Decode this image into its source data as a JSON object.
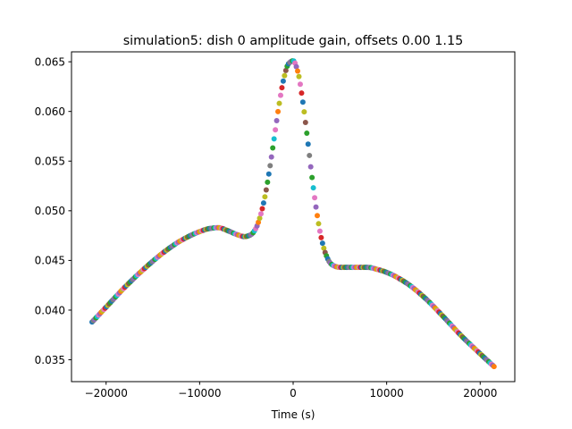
{
  "chart_data": {
    "type": "scatter",
    "title": "simulation5: dish 0 amplitude gain, offsets 0.00 1.15",
    "xlabel": "Time (s)",
    "ylabel": "",
    "xlim": [
      -23700,
      23700
    ],
    "ylim": [
      0.0328,
      0.066
    ],
    "xticks": [
      -20000,
      -10000,
      0,
      10000,
      20000
    ],
    "xtick_labels": [
      "−20000",
      "−10000",
      "0",
      "10000",
      "20000"
    ],
    "yticks": [
      0.035,
      0.04,
      0.045,
      0.05,
      0.055,
      0.06,
      0.065
    ],
    "ytick_labels": [
      "0.035",
      "0.040",
      "0.045",
      "0.050",
      "0.055",
      "0.060",
      "0.065"
    ],
    "grid": false,
    "legend": "none",
    "marker": "circle",
    "curve_x": [
      -21500,
      -20000,
      -18000,
      -16000,
      -14000,
      -12000,
      -10000,
      -9000,
      -8000,
      -7000,
      -6000,
      -5200,
      -4500,
      -4000,
      -3500,
      -3000,
      -2500,
      -2000,
      -1500,
      -1000,
      -500,
      0,
      500,
      1000,
      1500,
      2000,
      2500,
      3000,
      3500,
      4000,
      4500,
      5000,
      6000,
      7000,
      8000,
      9000,
      10000,
      12000,
      14000,
      16000,
      18000,
      20000,
      21500
    ],
    "curve_y": [
      0.0388,
      0.0403,
      0.0423,
      0.0441,
      0.0457,
      0.047,
      0.0479,
      0.0482,
      0.0483,
      0.048,
      0.0476,
      0.0474,
      0.0476,
      0.0482,
      0.0495,
      0.0515,
      0.0543,
      0.0575,
      0.0607,
      0.0633,
      0.0648,
      0.0651,
      0.064,
      0.0612,
      0.0575,
      0.0535,
      0.05,
      0.0473,
      0.0456,
      0.0447,
      0.0444,
      0.0443,
      0.0443,
      0.0443,
      0.0443,
      0.0441,
      0.0438,
      0.0428,
      0.0413,
      0.0394,
      0.0374,
      0.0356,
      0.0343
    ],
    "point_spacing_s": 140,
    "series_colors": [
      "#1f77b4",
      "#ff7f0e",
      "#2ca02c",
      "#d62728",
      "#9467bd",
      "#8c564b",
      "#e377c2",
      "#7f7f7f",
      "#bcbd22",
      "#17becf"
    ]
  }
}
